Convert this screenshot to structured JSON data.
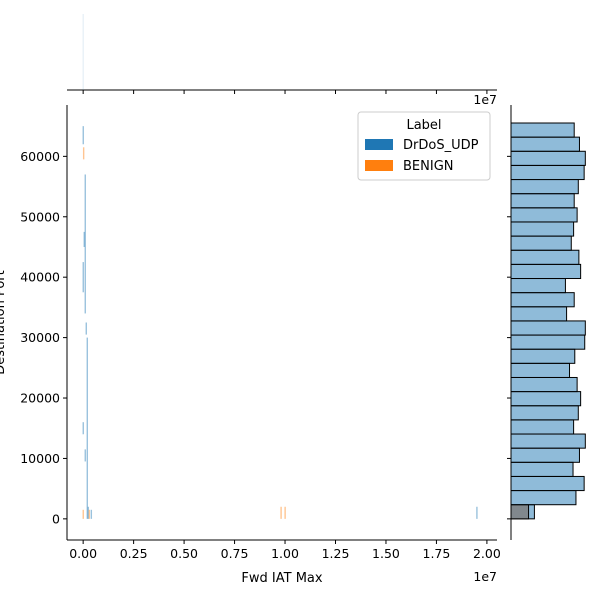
{
  "chart_data": {
    "type": "jointplot-histogram",
    "xlabel": "Fwd IAT Max",
    "ylabel": "Destination Port",
    "x_offset_text": "1e7",
    "top_offset_text": "1e7",
    "xlim": [
      -0.08,
      2.05
    ],
    "ylim": [
      -3500,
      68500
    ],
    "x_tick_values": [
      0.0,
      0.25,
      0.5,
      0.75,
      1.0,
      1.25,
      1.5,
      1.75,
      2.0
    ],
    "x_tick_labels": [
      "0.00",
      "0.25",
      "0.50",
      "0.75",
      "1.00",
      "1.25",
      "1.50",
      "1.75",
      "2.00"
    ],
    "y_tick_values": [
      0,
      10000,
      20000,
      30000,
      40000,
      50000,
      60000
    ],
    "y_tick_labels": [
      "0",
      "10000",
      "20000",
      "30000",
      "40000",
      "50000",
      "60000"
    ],
    "legend": {
      "title": "Label",
      "placement": "top-right",
      "entries": [
        {
          "name": "DrDoS_UDP",
          "color": "#1f77b4"
        },
        {
          "name": "BENIGN",
          "color": "#ff7f0e"
        }
      ]
    },
    "joint_marks": [
      {
        "series": "DrDoS_UDP",
        "x": 0.0,
        "y0": 62000,
        "y1": 65000
      },
      {
        "series": "DrDoS_UDP",
        "x": 0.01,
        "y0": 34000,
        "y1": 57000
      },
      {
        "series": "DrDoS_UDP",
        "x": 0.005,
        "y0": 45000,
        "y1": 47500
      },
      {
        "series": "DrDoS_UDP",
        "x": 0.0,
        "y0": 37500,
        "y1": 42500
      },
      {
        "series": "DrDoS_UDP",
        "x": 0.015,
        "y0": 30500,
        "y1": 32500
      },
      {
        "series": "DrDoS_UDP",
        "x": 0.02,
        "y0": 0,
        "y1": 30000
      },
      {
        "series": "DrDoS_UDP",
        "x": 0.0,
        "y0": 14000,
        "y1": 16000
      },
      {
        "series": "DrDoS_UDP",
        "x": 0.01,
        "y0": 9500,
        "y1": 11500
      },
      {
        "series": "DrDoS_UDP",
        "x": 0.025,
        "y0": 0,
        "y1": 2000
      },
      {
        "series": "DrDoS_UDP",
        "x": 0.04,
        "y0": 0,
        "y1": 1500
      },
      {
        "series": "DrDoS_UDP",
        "x": 1.95,
        "y0": 0,
        "y1": 2000
      },
      {
        "series": "BENIGN",
        "x": 0.002,
        "y0": 59500,
        "y1": 61500
      },
      {
        "series": "BENIGN",
        "x": 0.0,
        "y0": 0,
        "y1": 1500
      },
      {
        "series": "BENIGN",
        "x": 0.03,
        "y0": 0,
        "y1": 1500
      },
      {
        "series": "BENIGN",
        "x": 0.98,
        "y0": 0,
        "y1": 2000
      },
      {
        "series": "BENIGN",
        "x": 1.0,
        "y0": 0,
        "y1": 2000
      }
    ],
    "top_marginal": {
      "x": 0.0,
      "height_fraction": 1.0
    },
    "right_marginal": {
      "bin_edges": [
        0,
        2340,
        4680,
        7020,
        9360,
        11700,
        14040,
        16380,
        18720,
        21060,
        23400,
        25740,
        28080,
        30420,
        32760,
        35100,
        37440,
        39780,
        42120,
        44460,
        46800,
        49140,
        51480,
        53820,
        56160,
        58500,
        60840,
        63180,
        65520
      ],
      "counts_drdos_udp": [
        40,
        111,
        125,
        106,
        117,
        127,
        107,
        115,
        119,
        113,
        100,
        109,
        126,
        127,
        95,
        108,
        93,
        119,
        116,
        103,
        107,
        113,
        108,
        115,
        125,
        127,
        117,
        108
      ],
      "counts_benign": [
        30,
        0,
        0,
        0,
        0,
        0,
        0,
        0,
        0,
        0,
        0,
        0,
        0,
        0,
        0,
        0,
        0,
        0,
        0,
        0,
        0,
        0,
        0,
        0,
        0,
        0,
        0,
        0
      ],
      "xmax": 135
    }
  }
}
